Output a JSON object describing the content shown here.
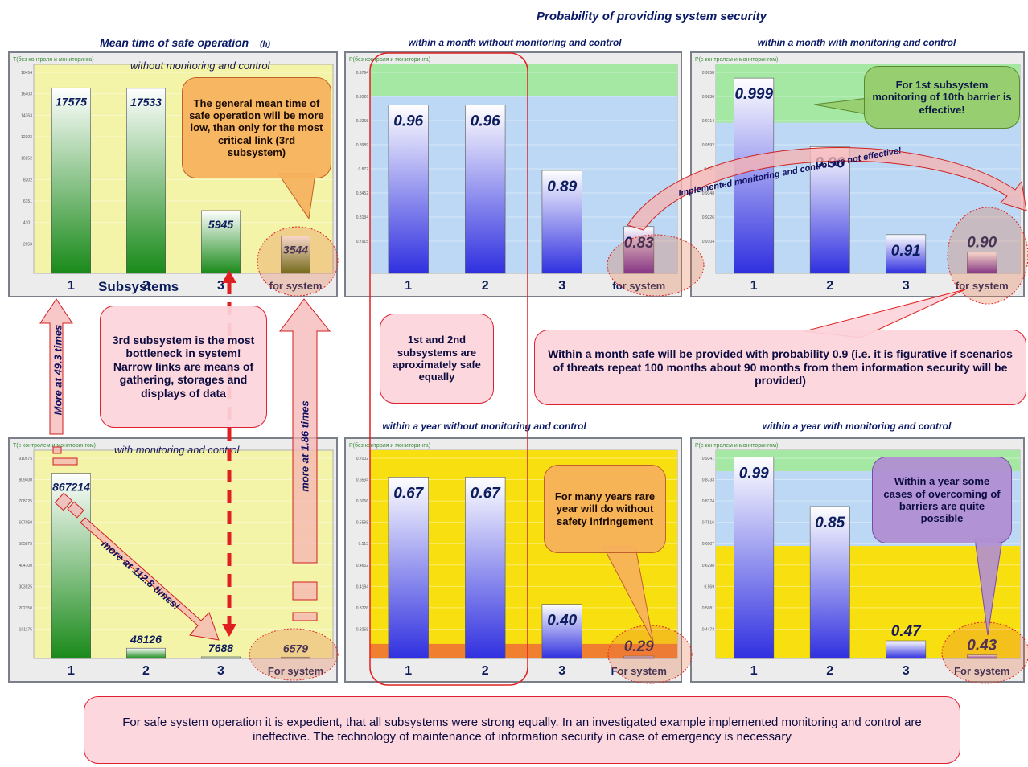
{
  "header": {
    "main_title": "Probability of providing system security",
    "mean_title": "Mean time of safe operation",
    "mean_unit": "(h)",
    "sub_p1": "within a month without monitoring and control",
    "sub_p2": "within a month with monitoring and control",
    "sub_p3": "within a year without monitoring and control",
    "sub_p4": "within a year with monitoring and control"
  },
  "panel_text": {
    "top_left_chart_title": "T(без контроля и мониторинга)",
    "top_left_caption": "without monitoring and control",
    "subsystems_label": "Subsystems",
    "bottom_left_chart_title": "T(с контролем и мониторингом)",
    "bottom_left_caption": "with monitoring and control",
    "p1_chart_title": "P(без контроля и мониторинга)",
    "p2_chart_title": "P(с контролем и мониторингом)",
    "p3_chart_title": "P(без контроля и мониторинга)",
    "p4_chart_title": "P(с контролем и мониторингом)"
  },
  "bubbles": {
    "general_mean": "The general mean time of safe operation will be more low, than only for the most critical link (3rd subsystem)",
    "bottleneck": "3rd subsystem is the most bottleneck in system! Narrow links are means of gathering, storages and displays of data",
    "equal": "1st and 2nd subsystems are aproximately safe equally",
    "first_sub": "For 1st subsystem monitoring of 10th barrier is effective!",
    "within_month": "Within a month safe will be provided with probability 0.9 (i.e. it is figurative if scenarios of threats repeat 100 months about 90 months from them information security will be provided)",
    "rare_year": "For many years rare year will do without safety infringement",
    "year_cases": "Within a year some cases of overcoming of barriers are quite possible",
    "conclusion": "For safe system operation it is expedient, that all subsystems were strong equally. In an investigated example implemented monitoring and control are ineffective. The technology of maintenance of information security in case of emergency is necessary"
  },
  "arrows": {
    "more_49": "More at 49.3 times",
    "more_186": "more at  1.86  times",
    "more_1128": "more at 112.8 times!",
    "implemented": "Implemented   monitoring    and control   are not effective!"
  },
  "chart_data": [
    {
      "type": "bar",
      "title": "T(без контроля и мониторинга)",
      "categories": [
        "1",
        "2",
        "3",
        "for system"
      ],
      "values": [
        17575,
        17533,
        5945,
        3544
      ],
      "value_labels": [
        "17575",
        "17533",
        "5945",
        "3544"
      ],
      "ytick_labels": [
        "18454",
        "16403",
        "14353",
        "12303",
        "10252",
        "8202",
        "6151",
        "4101",
        "2050"
      ],
      "ylim": [
        0,
        19500
      ],
      "colors": [
        "#1a8a1a",
        "#1a8a1a",
        "#1a8a1a",
        "#4a6a10"
      ]
    },
    {
      "type": "bar",
      "title": "T(с контролем и мониторингом)",
      "categories": [
        "1",
        "2",
        "3",
        "For system"
      ],
      "values": [
        867214,
        48126,
        7688,
        6579
      ],
      "value_labels": [
        "867214",
        "48126",
        "7688",
        "6579"
      ],
      "ytick_labels": [
        "910575",
        "809400",
        "708225",
        "607050",
        "505875",
        "404700",
        "303525",
        "202350",
        "101175"
      ],
      "ylim": [
        0,
        960000
      ],
      "colors": [
        "#1a8a1a",
        "#1a8a1a",
        "#1a8a1a",
        "#4a6a10"
      ]
    },
    {
      "type": "bar",
      "title": "P(без контроля и мониторинга)",
      "categories": [
        "1",
        "2",
        "3",
        "for system"
      ],
      "values": [
        0.96,
        0.96,
        0.89,
        0.83
      ],
      "value_labels": [
        "0.96",
        "0.96",
        "0.89",
        "0.83"
      ],
      "ytick_labels": [
        "0.9794",
        "0.9526",
        "0.9258",
        "0.8989",
        "0.872",
        "0.8452",
        "0.8184",
        "0.7915"
      ],
      "ylim": [
        0.78,
        1.0
      ],
      "colors": [
        "#3030e0",
        "#3030e0",
        "#3030e0",
        "#6020a0"
      ]
    },
    {
      "type": "bar",
      "title": "P(с контролем и мониторингом)",
      "categories": [
        "1",
        "2",
        "3",
        "for system"
      ],
      "values": [
        0.999,
        0.96,
        0.91,
        0.9
      ],
      "value_labels": [
        "0.999",
        "0.96",
        "0.91",
        "0.90"
      ],
      "ytick_labels": [
        "0.9958",
        "0.9836",
        "0.9714",
        "0.9592",
        "0.947",
        "0.9348",
        "0.9226",
        "0.9104"
      ],
      "ylim": [
        0.888,
        1.005
      ],
      "colors": [
        "#3030e0",
        "#3030e0",
        "#3030e0",
        "#6020a0"
      ]
    },
    {
      "type": "bar",
      "title": "P(без контроля и мониторинга)",
      "categories": [
        "1",
        "2",
        "3",
        "For system"
      ],
      "values": [
        0.67,
        0.67,
        0.4,
        0.29
      ],
      "value_labels": [
        "0.67",
        "0.67",
        "0.40",
        "0.29"
      ],
      "ytick_labels": [
        "0.7002",
        "0.6534",
        "0.6066",
        "0.5598",
        "0.513",
        "0.4662",
        "0.4194",
        "0.3726",
        "0.3258"
      ],
      "ylim": [
        0.285,
        0.72
      ],
      "colors": [
        "#3030e0",
        "#3030e0",
        "#3030e0",
        "#6020a0"
      ]
    },
    {
      "type": "bar",
      "title": "P(с контролем и мониторингом)",
      "categories": [
        "1",
        "2",
        "3",
        "For system"
      ],
      "values": [
        0.99,
        0.85,
        0.47,
        0.43
      ],
      "value_labels": [
        "0.99",
        "0.85",
        "0.47",
        "0.43"
      ],
      "ytick_labels": [
        "0.9341",
        "0.8733",
        "0.8124",
        "0.7516",
        "0.6907",
        "0.6298",
        "0.569",
        "0.5081",
        "0.4473"
      ],
      "ylim": [
        0.42,
        1.0
      ],
      "colors": [
        "#3030e0",
        "#3030e0",
        "#3030e0",
        "#6020a0"
      ]
    }
  ]
}
